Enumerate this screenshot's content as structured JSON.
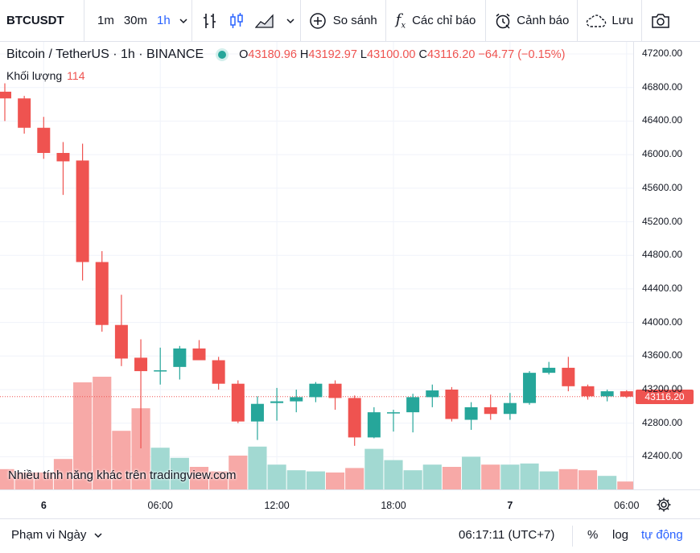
{
  "toolbar": {
    "symbol": "BTCUSDT",
    "intervals": [
      "1m",
      "30m",
      "1h"
    ],
    "active_interval": "1h",
    "compare_label": "So sánh",
    "indicators_label": "Các chỉ báo",
    "alerts_label": "Cảnh báo",
    "save_label": "Lưu"
  },
  "legend": {
    "title": "Bitcoin / TetherUS · 1h · BINANCE",
    "open_label": "O",
    "open": "43180.96",
    "high_label": "H",
    "high": "43192.97",
    "low_label": "L",
    "low": "43100.00",
    "close_label": "C",
    "close": "43116.20",
    "change": "−64.77 (−0.15%)",
    "volume_label": "Khối lượng",
    "volume_value": "114"
  },
  "watermark": "Nhiều tính năng khác trên tradingview.com",
  "bottom_bar": {
    "range_label": "Phạm vi Ngày",
    "time": "06:17:11 (UTC+7)",
    "percent": "%",
    "log": "log",
    "auto": "tự động"
  },
  "colors": {
    "up": "#26a69a",
    "down": "#ef5350",
    "up_vol": "#a2d9d2",
    "down_vol": "#f7a9a7",
    "accent": "#2962ff"
  },
  "chart_data": {
    "type": "candlestick",
    "y_ticks": [
      "47200.00",
      "46800.00",
      "46400.00",
      "46000.00",
      "45600.00",
      "45200.00",
      "44800.00",
      "44400.00",
      "44000.00",
      "43600.00",
      "43200.00",
      "42800.00",
      "42400.00"
    ],
    "ylim": [
      42100,
      47200
    ],
    "last_price": "43116.20",
    "x_ticks": [
      {
        "label": "6",
        "index": 2
      },
      {
        "label": "06:00",
        "index": 8
      },
      {
        "label": "12:00",
        "index": 14
      },
      {
        "label": "18:00",
        "index": 20
      },
      {
        "label": "7",
        "index": 26
      },
      {
        "label": "06:00",
        "index": 32
      }
    ],
    "candles": [
      {
        "o": 46750,
        "h": 46850,
        "l": 46400,
        "c": 46670
      },
      {
        "o": 46670,
        "h": 46700,
        "l": 46250,
        "c": 46320
      },
      {
        "o": 46320,
        "h": 46450,
        "l": 45950,
        "c": 46020
      },
      {
        "o": 46020,
        "h": 46150,
        "l": 45520,
        "c": 45920
      },
      {
        "o": 45930,
        "h": 46130,
        "l": 44500,
        "c": 44720
      },
      {
        "o": 44720,
        "h": 44850,
        "l": 43890,
        "c": 43970
      },
      {
        "o": 43970,
        "h": 44330,
        "l": 43480,
        "c": 43570
      },
      {
        "o": 43580,
        "h": 43800,
        "l": 42500,
        "c": 43420
      },
      {
        "o": 43420,
        "h": 43700,
        "l": 43260,
        "c": 43430
      },
      {
        "o": 43470,
        "h": 43720,
        "l": 43320,
        "c": 43690
      },
      {
        "o": 43690,
        "h": 43790,
        "l": 43550,
        "c": 43550
      },
      {
        "o": 43550,
        "h": 43590,
        "l": 43200,
        "c": 43270
      },
      {
        "o": 43270,
        "h": 43310,
        "l": 42800,
        "c": 42820
      },
      {
        "o": 42820,
        "h": 43120,
        "l": 42600,
        "c": 43030
      },
      {
        "o": 43040,
        "h": 43220,
        "l": 42830,
        "c": 43060
      },
      {
        "o": 43060,
        "h": 43200,
        "l": 42930,
        "c": 43110
      },
      {
        "o": 43110,
        "h": 43290,
        "l": 43050,
        "c": 43270
      },
      {
        "o": 43270,
        "h": 43310,
        "l": 42960,
        "c": 43100
      },
      {
        "o": 43100,
        "h": 43130,
        "l": 42530,
        "c": 42630
      },
      {
        "o": 42630,
        "h": 42990,
        "l": 42620,
        "c": 42930
      },
      {
        "o": 42920,
        "h": 42960,
        "l": 42700,
        "c": 42930
      },
      {
        "o": 42930,
        "h": 43150,
        "l": 42690,
        "c": 43110
      },
      {
        "o": 43110,
        "h": 43260,
        "l": 42990,
        "c": 43190
      },
      {
        "o": 43200,
        "h": 43230,
        "l": 42820,
        "c": 42850
      },
      {
        "o": 42840,
        "h": 43050,
        "l": 42720,
        "c": 42990
      },
      {
        "o": 42990,
        "h": 43140,
        "l": 42840,
        "c": 42910
      },
      {
        "o": 42910,
        "h": 43160,
        "l": 42840,
        "c": 43040
      },
      {
        "o": 43040,
        "h": 43420,
        "l": 43020,
        "c": 43400
      },
      {
        "o": 43400,
        "h": 43530,
        "l": 43380,
        "c": 43460
      },
      {
        "o": 43460,
        "h": 43590,
        "l": 43180,
        "c": 43240
      },
      {
        "o": 43240,
        "h": 43260,
        "l": 43080,
        "c": 43120
      },
      {
        "o": 43120,
        "h": 43200,
        "l": 43060,
        "c": 43180
      },
      {
        "o": 43180,
        "h": 43193,
        "l": 43100,
        "c": 43116
      }
    ],
    "volume_rel": [
      0.18,
      0.15,
      0.15,
      0.27,
      0.95,
      1.0,
      0.52,
      0.72,
      0.37,
      0.28,
      0.2,
      0.16,
      0.3,
      0.38,
      0.22,
      0.17,
      0.16,
      0.15,
      0.19,
      0.36,
      0.26,
      0.17,
      0.22,
      0.2,
      0.29,
      0.22,
      0.22,
      0.23,
      0.16,
      0.18,
      0.17,
      0.12,
      0.07
    ]
  }
}
